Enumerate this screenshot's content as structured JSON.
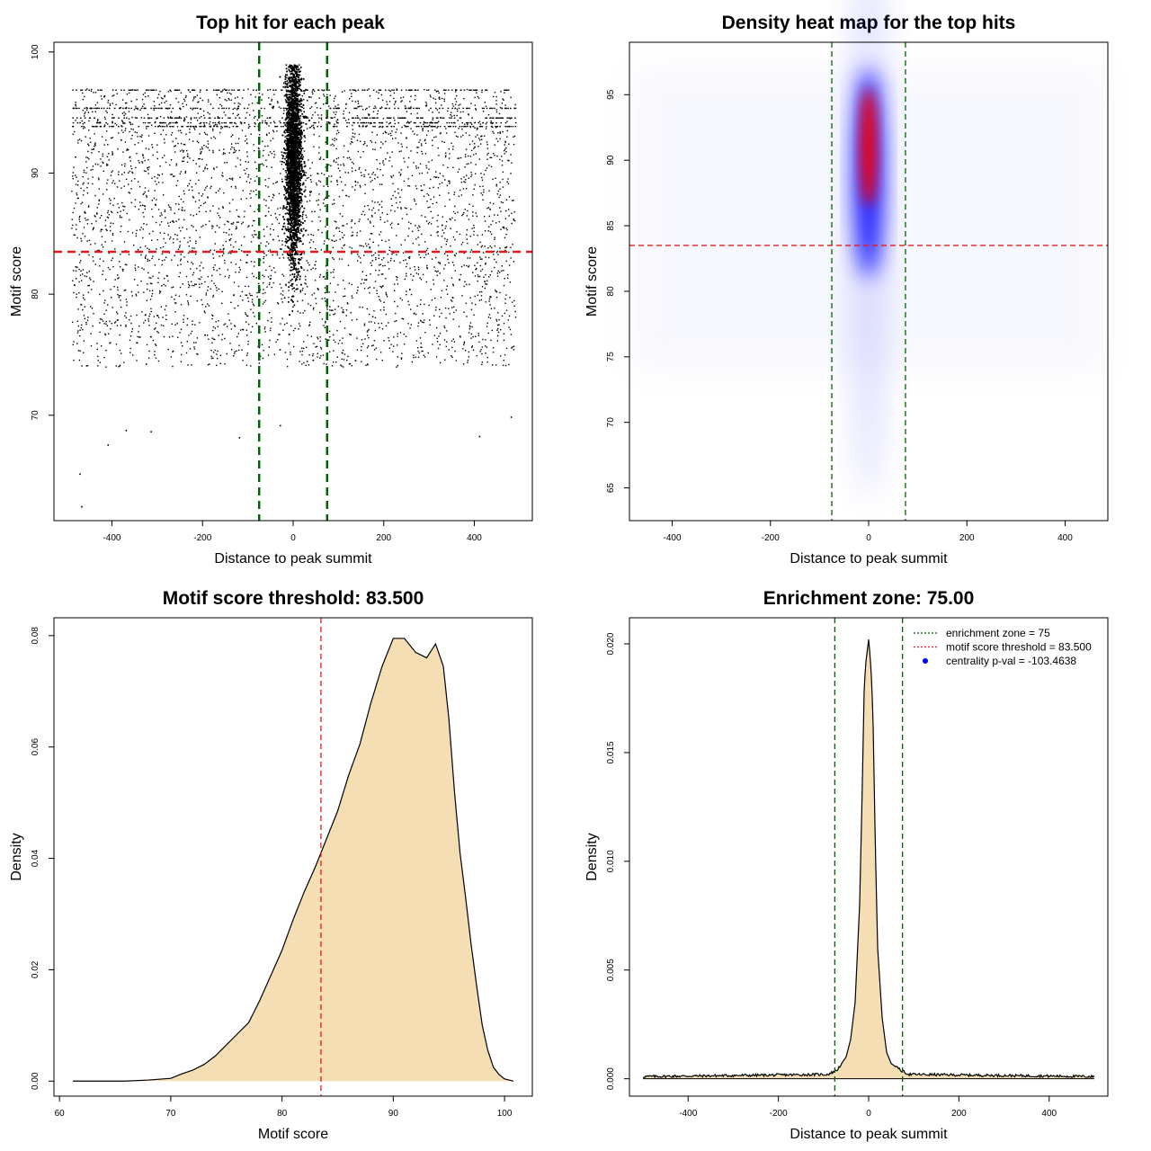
{
  "chart_data": [
    {
      "type": "scatter",
      "title": "Top hit for each peak",
      "xlabel": "Distance to peak summit",
      "ylabel": "Motif score",
      "xlim": [
        -528,
        528
      ],
      "ylim": [
        61.3,
        100.8
      ],
      "xticks": [
        -400,
        -200,
        0,
        200,
        400
      ],
      "yticks": [
        70,
        80,
        90,
        100
      ],
      "tick_labels_x": [
        "-400",
        "-200",
        "0",
        "200",
        "400"
      ],
      "tick_labels_y": [
        "70",
        "80",
        "90",
        "100"
      ],
      "vlines": [
        -75,
        75
      ],
      "hline": 83.5,
      "vline_color": "#006400",
      "hline_color": "#e41a1c",
      "point_color": "#000000",
      "central_cloud": {
        "x_range": [
          -25,
          25
        ],
        "y_range": [
          74,
          99
        ],
        "dense_center_y": 91
      },
      "background_points": {
        "x_range": [
          -490,
          490
        ],
        "y_range": [
          74,
          97
        ]
      },
      "outliers": [
        [
          -468,
          62.5
        ],
        [
          -472,
          65.2
        ],
        [
          -410,
          67.6
        ],
        [
          -370,
          68.8
        ],
        [
          -315,
          68.7
        ],
        [
          -120,
          68.2
        ],
        [
          -30,
          69.2
        ],
        [
          410,
          68.3
        ],
        [
          480,
          69.9
        ]
      ],
      "stripe_rows": [
        94.2,
        94.6,
        93.9,
        95.4,
        96.9
      ]
    },
    {
      "type": "heatmap",
      "title": "Density heat map for the top hits",
      "xlabel": "Distance to peak summit",
      "ylabel": "Motif score",
      "xlim": [
        -487,
        487
      ],
      "ylim": [
        62.5,
        99
      ],
      "xticks": [
        -400,
        -200,
        0,
        200,
        400
      ],
      "yticks": [
        65,
        70,
        75,
        80,
        85,
        90,
        95
      ],
      "tick_labels_x": [
        "-400",
        "-200",
        "0",
        "200",
        "400"
      ],
      "tick_labels_y": [
        "65",
        "70",
        "75",
        "80",
        "85",
        "90",
        "95"
      ],
      "vlines": [
        -75,
        75
      ],
      "hline": 83.5,
      "vline_color": "#006400",
      "hline_color": "#e41a1c",
      "peak": {
        "x": 0,
        "y": 91,
        "colors": [
          "#ff0000",
          "#0000ff",
          "#ffffff"
        ]
      }
    },
    {
      "type": "area",
      "title": "Motif score threshold: 83.500",
      "xlabel": "Motif score",
      "ylabel": "Density",
      "xlim": [
        59.5,
        102.5
      ],
      "ylim": [
        -0.0027,
        0.0832
      ],
      "xticks": [
        60,
        70,
        80,
        90,
        100
      ],
      "yticks": [
        0.0,
        0.02,
        0.04,
        0.06,
        0.08
      ],
      "tick_labels_x": [
        "60",
        "70",
        "80",
        "90",
        "100"
      ],
      "tick_labels_y": [
        "0.00",
        "0.02",
        "0.04",
        "0.06",
        "0.08"
      ],
      "vline": 83.5,
      "vline_color": "#e41a1c",
      "fill_color": "#f5deb3",
      "x": [
        61.2,
        66,
        68,
        70,
        71,
        72,
        73,
        74,
        75,
        76,
        77,
        78,
        79,
        80,
        81,
        82,
        83,
        84,
        85,
        86,
        87,
        88,
        89,
        90,
        91,
        92,
        93,
        93.8,
        94.5,
        95,
        95.5,
        96,
        96.5,
        97,
        97.5,
        98,
        98.5,
        99,
        99.5,
        100,
        100.8
      ],
      "y": [
        0.0,
        0.0,
        0.0002,
        0.0005,
        0.0013,
        0.002,
        0.003,
        0.0045,
        0.0065,
        0.0085,
        0.0105,
        0.0145,
        0.019,
        0.0235,
        0.029,
        0.034,
        0.0385,
        0.0435,
        0.0485,
        0.055,
        0.0605,
        0.068,
        0.0745,
        0.0795,
        0.0795,
        0.077,
        0.076,
        0.0785,
        0.0745,
        0.065,
        0.052,
        0.041,
        0.033,
        0.0245,
        0.017,
        0.01,
        0.0055,
        0.0025,
        0.0012,
        0.0004,
        0.0
      ]
    },
    {
      "type": "area",
      "title": "Enrichment zone: 75.00",
      "xlabel": "Distance to peak summit",
      "ylabel": "Density",
      "xlim": [
        -530,
        530
      ],
      "ylim": [
        -0.0008,
        0.0212
      ],
      "xticks": [
        -400,
        -200,
        0,
        200,
        400
      ],
      "yticks": [
        0.0,
        0.005,
        0.01,
        0.015,
        0.02
      ],
      "tick_labels_x": [
        "-400",
        "-200",
        "0",
        "200",
        "400"
      ],
      "tick_labels_y": [
        "0.000",
        "0.005",
        "0.010",
        "0.015",
        "0.020"
      ],
      "vlines": [
        -75,
        75
      ],
      "vline_color": "#006400",
      "fill_color": "#f5deb3",
      "baseline_density": 0.0001,
      "x": [
        -500,
        -90,
        -70,
        -50,
        -40,
        -30,
        -20,
        -15,
        -10,
        -7,
        -3,
        0,
        3,
        7,
        10,
        15,
        20,
        30,
        40,
        50,
        70,
        90,
        500
      ],
      "y": [
        0.0001,
        0.0002,
        0.0004,
        0.001,
        0.0018,
        0.0035,
        0.008,
        0.0125,
        0.0178,
        0.019,
        0.0197,
        0.0202,
        0.0195,
        0.0182,
        0.0162,
        0.0105,
        0.006,
        0.0028,
        0.0012,
        0.0007,
        0.0004,
        0.0002,
        0.0001
      ],
      "legend": [
        {
          "label": "enrichment zone = 75",
          "color": "#006400",
          "style": "dotted-line"
        },
        {
          "label": "motif score threshold = 83.500",
          "color": "#e41a1c",
          "style": "dotted-line"
        },
        {
          "label": "centrality p-val = -103.4638",
          "color": "#0000ff",
          "style": "point"
        }
      ],
      "legend_position": "top-right"
    }
  ]
}
